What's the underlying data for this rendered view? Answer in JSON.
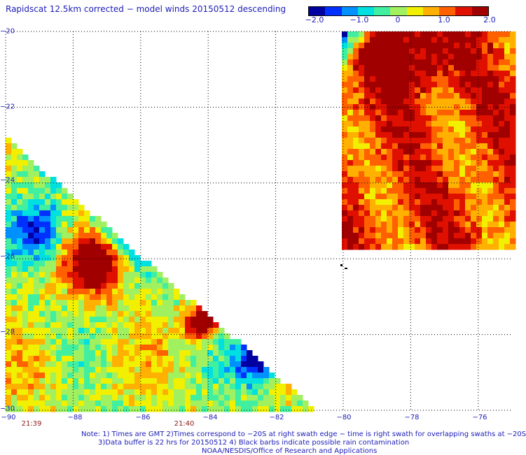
{
  "title": "Rapidscat 12.5km corrected − model winds 20150512 descending",
  "colorbar": {
    "ticks": [
      "−2.0",
      "−1.0",
      "0",
      "1.0",
      "2.0"
    ],
    "tick_values": [
      -2.0,
      -1.0,
      0,
      1.0,
      2.0
    ],
    "colors": [
      "#0000a0",
      "#0030ff",
      "#0090ff",
      "#00e0e0",
      "#40f0a0",
      "#a0f060",
      "#f0f000",
      "#ffb000",
      "#ff6000",
      "#e01000",
      "#a00000"
    ]
  },
  "chart_data": {
    "type": "heatmap",
    "title": "Rapidscat 12.5km corrected − model winds 20150512 descending",
    "value_range": [
      -2.0,
      2.0
    ],
    "xlim": [
      -90,
      -75
    ],
    "ylim": [
      -30,
      -20
    ],
    "x_ticks": [
      "−90",
      "−88",
      "−86",
      "−84",
      "−82",
      "−80",
      "−78",
      "−76"
    ],
    "y_ticks": [
      "−20",
      "−22",
      "−24",
      "−26",
      "−28",
      "−30"
    ],
    "x_tick_values": [
      -90,
      -88,
      -86,
      -84,
      -82,
      -80,
      -78,
      -76
    ],
    "y_tick_values": [
      -20,
      -22,
      -24,
      -26,
      -28,
      -30
    ],
    "grid": true,
    "swaths": [
      {
        "time": "21:39",
        "region": "west swath, lon -90 to -80.8, lat -22.8 to -30",
        "dominant_values": "mostly -0.5 to 0.8, local maxima near 2.0 around (-87.5,-26) and (-84.2,-27.7), minima near -2.0 along the western edge"
      },
      {
        "time": "21:40",
        "region": "east swath, lon -80.0 to -75, lat -20 to -25.7",
        "dominant_values": "mostly 1.0 to 2.0, strongest near (-78,-20.5); decreasing to below -1.0 along the southwestern edge"
      }
    ]
  },
  "time_labels": [
    "21:39",
    "21:40"
  ],
  "notes": {
    "line1": "Note: 1) Times are GMT 2)Times correspond to −20S at right swath edge − time is right swath for overlapping swaths at −20S",
    "line2": "3)Data buffer is 22 hrs for 20150512 4) Black barbs indicate possible rain contamination",
    "line3": "NOAA/NESDIS/Office of Research and Applications"
  }
}
